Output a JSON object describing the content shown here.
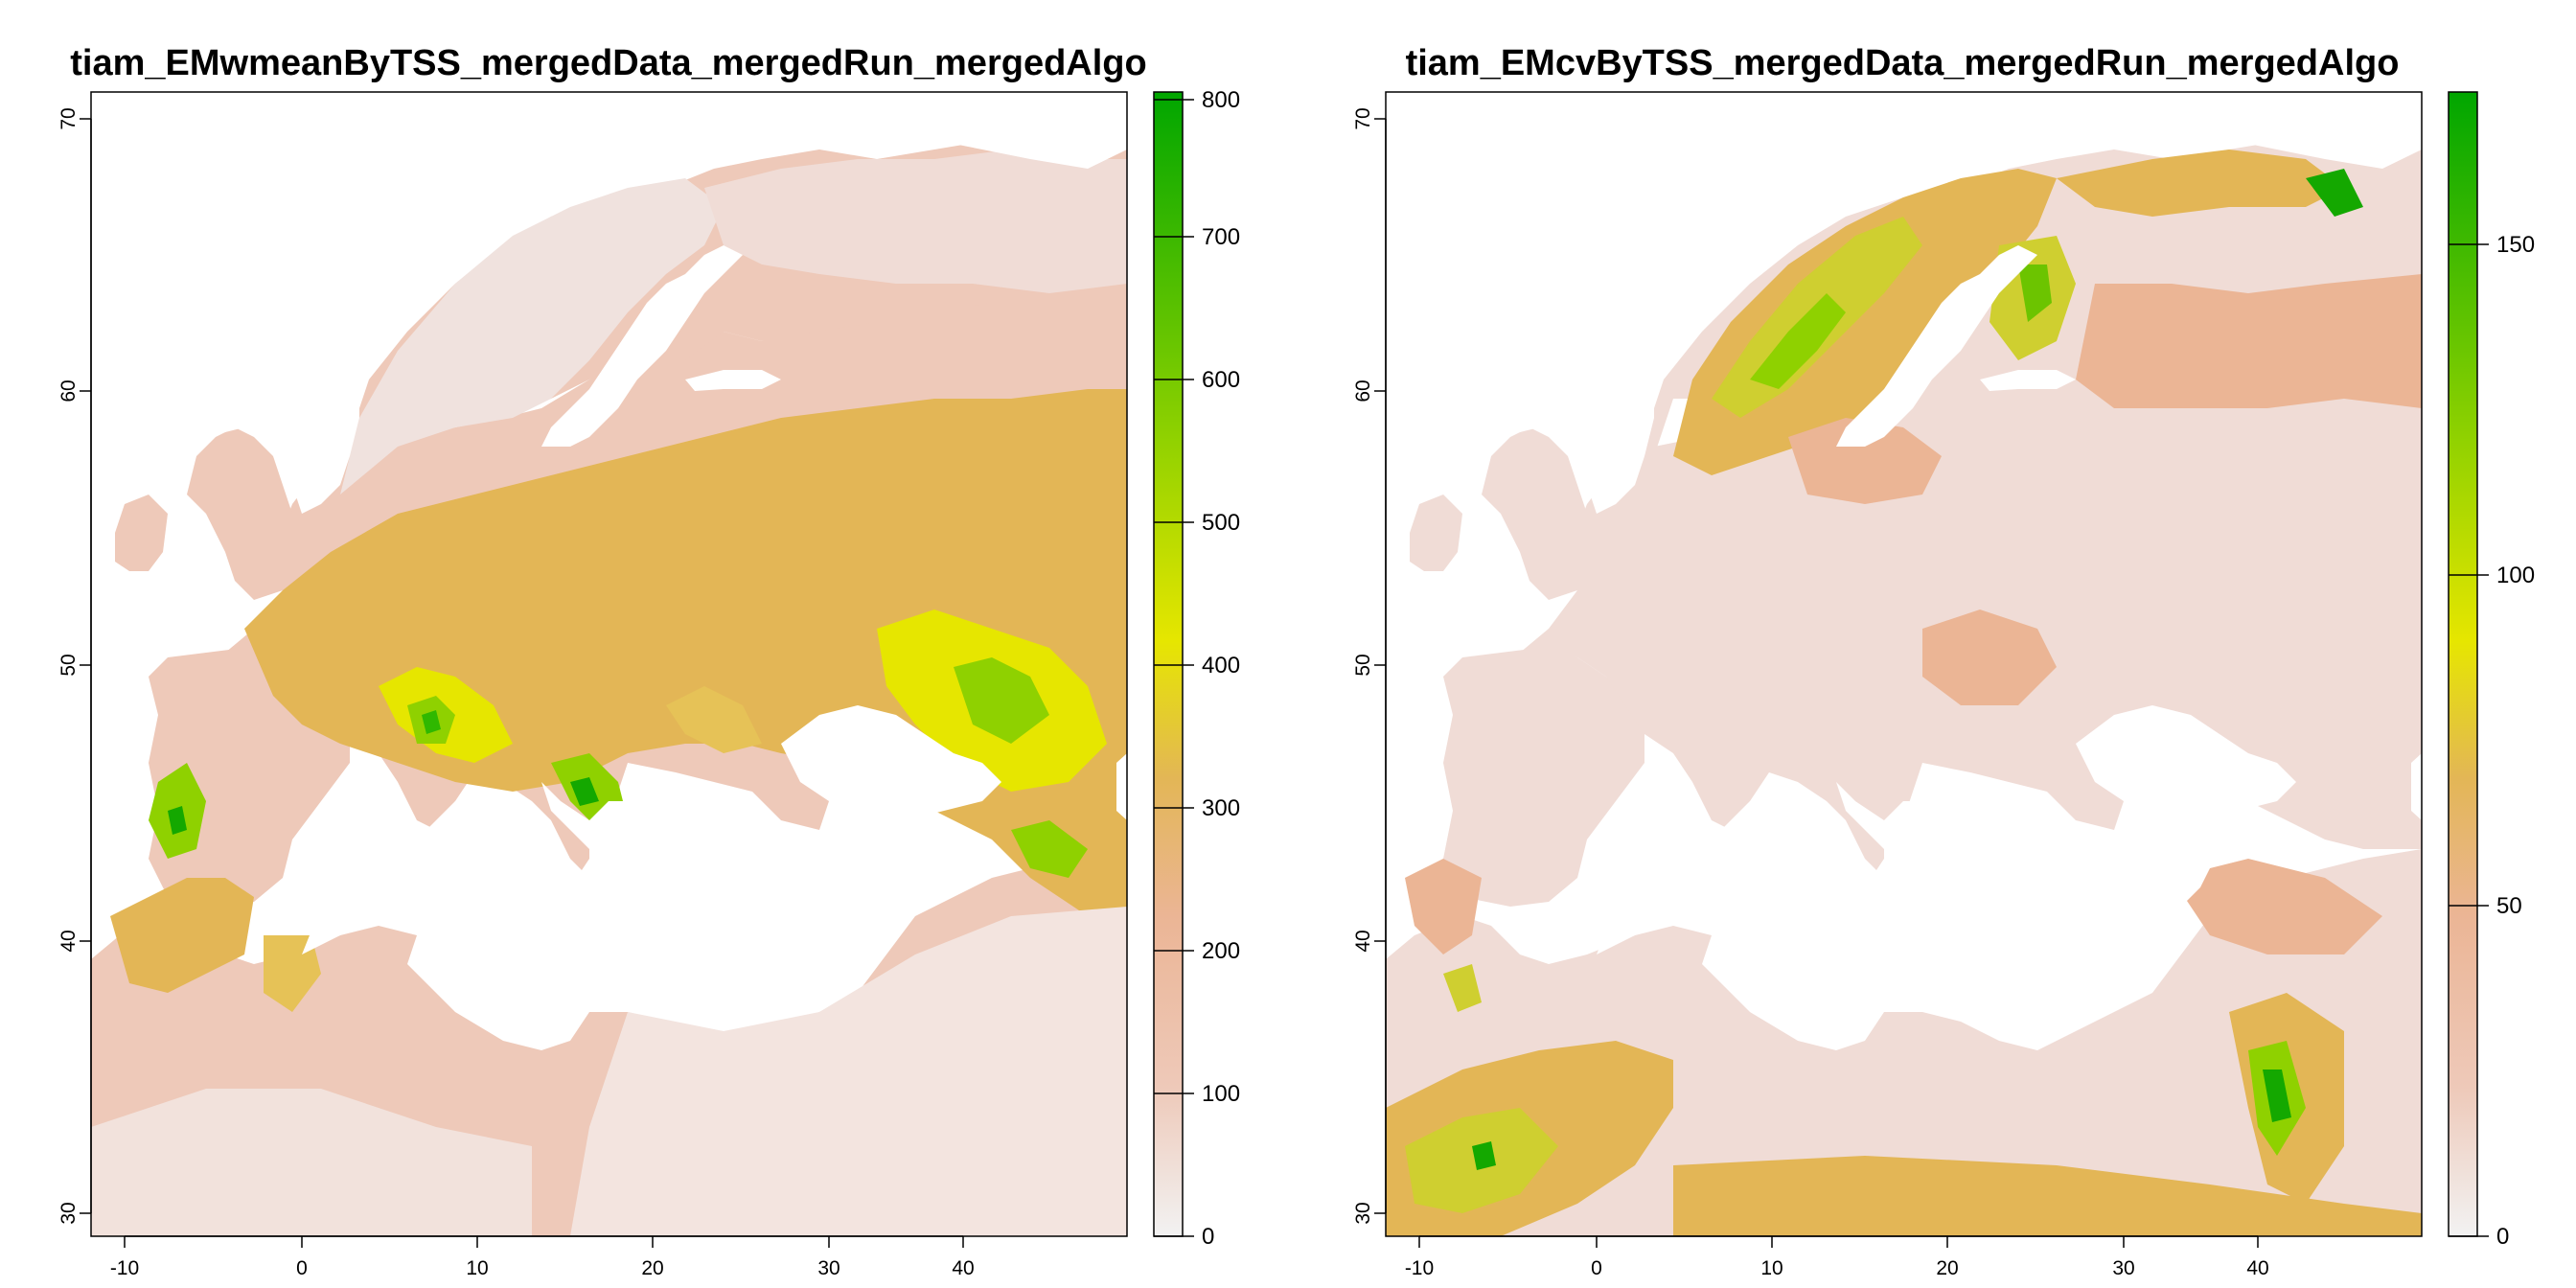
{
  "figure": {
    "panels": [
      {
        "title": "tiam_EMwmeanByTSS_mergedData_mergedRun_mergedAlgo",
        "x_ticks": [
          "-10",
          "0",
          "10",
          "20",
          "30",
          "40"
        ],
        "y_ticks": [
          "30",
          "40",
          "50",
          "60",
          "70"
        ],
        "colorbar": {
          "ticks": [
            "0",
            "100",
            "200",
            "300",
            "400",
            "500",
            "600",
            "700",
            "800"
          ],
          "range": [
            0,
            800
          ]
        }
      },
      {
        "title": "tiam_EMcvByTSS_mergedData_mergedRun_mergedAlgo",
        "x_ticks": [
          "-10",
          "0",
          "10",
          "20",
          "30",
          "40"
        ],
        "y_ticks": [
          "30",
          "40",
          "50",
          "60",
          "70"
        ],
        "colorbar": {
          "ticks": [
            "0",
            "50",
            "100",
            "150"
          ],
          "range": [
            0,
            175
          ]
        }
      }
    ],
    "colors": {
      "low": "#f2f2f2",
      "pink": "#eec9b9",
      "salmon": "#ebb595",
      "orange": "#e3b656",
      "yellow": "#e6e600",
      "lime": "#8fd100",
      "green": "#00a600",
      "water": "#ffffff"
    }
  },
  "chart_data": [
    {
      "type": "heatmap",
      "title": "tiam_EMwmeanByTSS_mergedData_mergedRun_mergedAlgo",
      "xlim": [
        -12,
        47
      ],
      "ylim": [
        29,
        71
      ],
      "x_ticks": [
        -10,
        0,
        10,
        20,
        30,
        40
      ],
      "y_ticks": [
        30,
        40,
        50,
        60,
        70
      ],
      "value_range": [
        0,
        800
      ],
      "legend": "right"
    },
    {
      "type": "heatmap",
      "title": "tiam_EMcvByTSS_mergedData_mergedRun_mergedAlgo",
      "xlim": [
        -12,
        47
      ],
      "ylim": [
        29,
        71
      ],
      "x_ticks": [
        -10,
        0,
        10,
        20,
        30,
        40
      ],
      "y_ticks": [
        30,
        40,
        50,
        60,
        70
      ],
      "value_range": [
        0,
        175
      ],
      "legend": "right"
    }
  ]
}
